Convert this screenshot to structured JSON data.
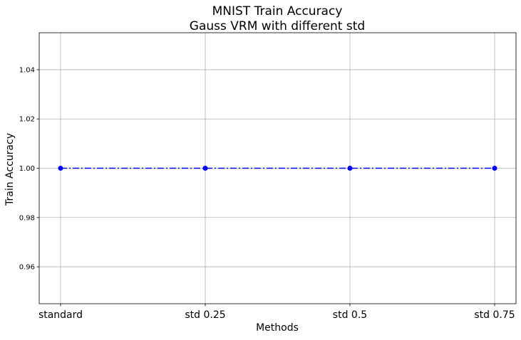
{
  "chart_data": {
    "type": "line",
    "title": "MNIST Train Accuracy",
    "subtitle": "Gauss VRM with different std",
    "xlabel": "Methods",
    "ylabel": "Train Accuracy",
    "categories": [
      "standard",
      "std 0.25",
      "std 0.5",
      "std 0.75"
    ],
    "series": [
      {
        "values": [
          1.0,
          1.0,
          1.0,
          1.0
        ],
        "color": "#0000ff",
        "line_style": "dash-dot",
        "marker": "circle"
      }
    ],
    "ylim": [
      0.945,
      1.055
    ],
    "yticks": [
      0.96,
      0.98,
      1.0,
      1.02,
      1.04
    ],
    "ytick_labels": [
      "0.96",
      "0.98",
      "1.00",
      "1.02",
      "1.04"
    ],
    "grid": true
  }
}
